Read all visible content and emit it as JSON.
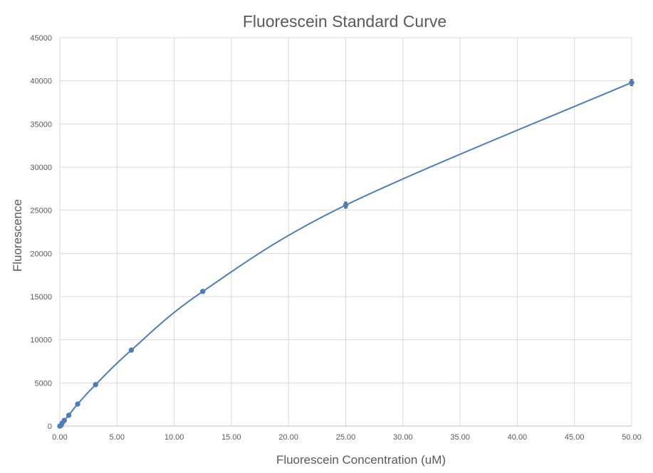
{
  "chart_data": {
    "type": "scatter",
    "title": "Fluorescein Standard Curve",
    "xlabel": "Fluorescein Concentration (uM)",
    "ylabel": "Fluorescence",
    "xlim": [
      0,
      50
    ],
    "ylim": [
      0,
      45000
    ],
    "x_ticks": [
      "0.00",
      "5.00",
      "10.00",
      "15.00",
      "20.00",
      "25.00",
      "30.00",
      "35.00",
      "40.00",
      "45.00",
      "50.00"
    ],
    "y_ticks": [
      "0",
      "5000",
      "10000",
      "15000",
      "20000",
      "25000",
      "30000",
      "35000",
      "40000",
      "45000"
    ],
    "grid": true,
    "legend": "none",
    "smooth_line": true,
    "series": [
      {
        "color": "#4a7ebb",
        "points": [
          {
            "x": 0.0,
            "y": 0,
            "err": 0
          },
          {
            "x": 0.1,
            "y": 80,
            "err": 0
          },
          {
            "x": 0.2,
            "y": 330,
            "err": 0
          },
          {
            "x": 0.39,
            "y": 650,
            "err": 0
          },
          {
            "x": 0.78,
            "y": 1250,
            "err": 0
          },
          {
            "x": 1.56,
            "y": 2550,
            "err": 0
          },
          {
            "x": 3.13,
            "y": 4800,
            "err": 0
          },
          {
            "x": 6.25,
            "y": 8800,
            "err": 150
          },
          {
            "x": 12.5,
            "y": 15600,
            "err": 100
          },
          {
            "x": 25.0,
            "y": 25600,
            "err": 350
          },
          {
            "x": 50.0,
            "y": 39800,
            "err": 350
          }
        ]
      }
    ]
  }
}
